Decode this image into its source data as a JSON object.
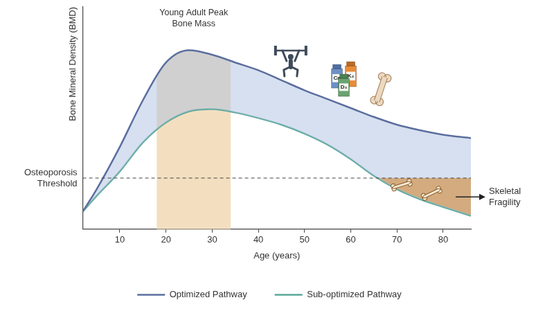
{
  "chart_data": {
    "type": "line",
    "x_label": "Age (years)",
    "y_label": "Bone Mineral Density (BMD)",
    "x": [
      2,
      5,
      10,
      15,
      20,
      25,
      30,
      35,
      40,
      45,
      50,
      55,
      60,
      65,
      70,
      75,
      80,
      86
    ],
    "series": [
      {
        "name": "Optimized Pathway",
        "color": "#5b6e9e",
        "values": [
          8,
          18,
          37,
          58,
          75,
          80.5,
          78.5,
          75,
          71.5,
          67,
          62.5,
          58.5,
          54.5,
          50.5,
          47,
          44.5,
          42.5,
          41
        ]
      },
      {
        "name": "Sub-optimized Pathway",
        "color": "#5aa898",
        "values": [
          8,
          15,
          26,
          39,
          48,
          53,
          54,
          52.5,
          50,
          47,
          43,
          38,
          31.5,
          24,
          18,
          13.5,
          10,
          6
        ]
      }
    ],
    "xlim": [
      2,
      86
    ],
    "xticks": [
      10,
      20,
      30,
      40,
      50,
      60,
      70,
      80
    ],
    "ylim": [
      0,
      100
    ],
    "tick_labels": "x",
    "grid": false,
    "legend": "bottom",
    "threshold": {
      "label": "Osteoporosis Threshold",
      "value": 23
    },
    "peak_band": {
      "label": "Young Adult Peak Bone Mass",
      "x": [
        18,
        34
      ]
    },
    "fragility_label": "Skeletal Fragility",
    "supplement_labels": [
      "Ca",
      "D₃",
      "K₂"
    ]
  }
}
